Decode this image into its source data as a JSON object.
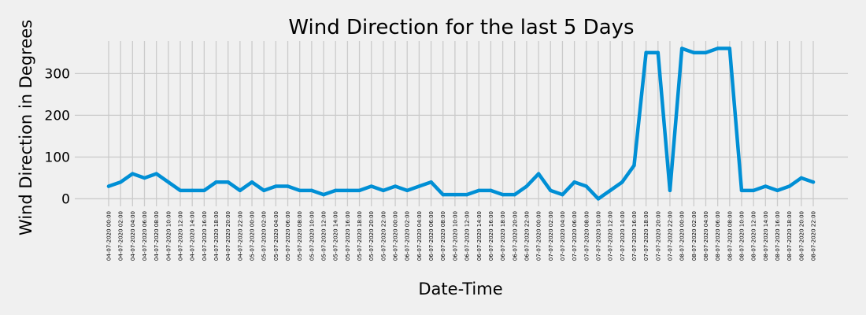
{
  "chart_data": {
    "type": "line",
    "title": "Wind Direction for the last 5 Days",
    "xlabel": "Date-Time",
    "ylabel": "Wind Direction in Degrees",
    "categories": [
      "04-07-2020 00:00",
      "04-07-2020 02:00",
      "04-07-2020 04:00",
      "04-07-2020 06:00",
      "04-07-2020 08:00",
      "04-07-2020 10:00",
      "04-07-2020 12:00",
      "04-07-2020 14:00",
      "04-07-2020 16:00",
      "04-07-2020 18:00",
      "04-07-2020 20:00",
      "04-07-2020 22:00",
      "05-07-2020 00:00",
      "05-07-2020 02:00",
      "05-07-2020 04:00",
      "05-07-2020 06:00",
      "05-07-2020 08:00",
      "05-07-2020 10:00",
      "05-07-2020 12:00",
      "05-07-2020 14:00",
      "05-07-2020 16:00",
      "05-07-2020 18:00",
      "05-07-2020 20:00",
      "05-07-2020 22:00",
      "06-07-2020 00:00",
      "06-07-2020 02:00",
      "06-07-2020 04:00",
      "06-07-2020 06:00",
      "06-07-2020 08:00",
      "06-07-2020 10:00",
      "06-07-2020 12:00",
      "06-07-2020 14:00",
      "06-07-2020 16:00",
      "06-07-2020 18:00",
      "06-07-2020 20:00",
      "06-07-2020 22:00",
      "07-07-2020 00:00",
      "07-07-2020 02:00",
      "07-07-2020 04:00",
      "07-07-2020 06:00",
      "07-07-2020 08:00",
      "07-07-2020 10:00",
      "07-07-2020 12:00",
      "07-07-2020 14:00",
      "07-07-2020 16:00",
      "07-07-2020 18:00",
      "07-07-2020 20:00",
      "07-07-2020 22:00",
      "08-07-2020 00:00",
      "08-07-2020 02:00",
      "08-07-2020 04:00",
      "08-07-2020 06:00",
      "08-07-2020 08:00",
      "08-07-2020 10:00",
      "08-07-2020 12:00",
      "08-07-2020 14:00",
      "08-07-2020 16:00",
      "08-07-2020 18:00",
      "08-07-2020 20:00",
      "08-07-2020 22:00"
    ],
    "series": [
      {
        "color": "#008fd5",
        "values": [
          30,
          40,
          60,
          50,
          60,
          40,
          20,
          20,
          20,
          40,
          40,
          20,
          40,
          20,
          30,
          30,
          20,
          20,
          10,
          20,
          20,
          20,
          30,
          20,
          30,
          20,
          30,
          40,
          10,
          10,
          10,
          20,
          20,
          10,
          10,
          30,
          60,
          20,
          10,
          40,
          30,
          0,
          20,
          40,
          80,
          350,
          350,
          20,
          360,
          350,
          350,
          360,
          360,
          20,
          20,
          30,
          20,
          30,
          50,
          40
        ]
      }
    ],
    "yticks": [
      0,
      100,
      200,
      300
    ],
    "ylim": [
      -18,
      378
    ],
    "grid": true
  }
}
